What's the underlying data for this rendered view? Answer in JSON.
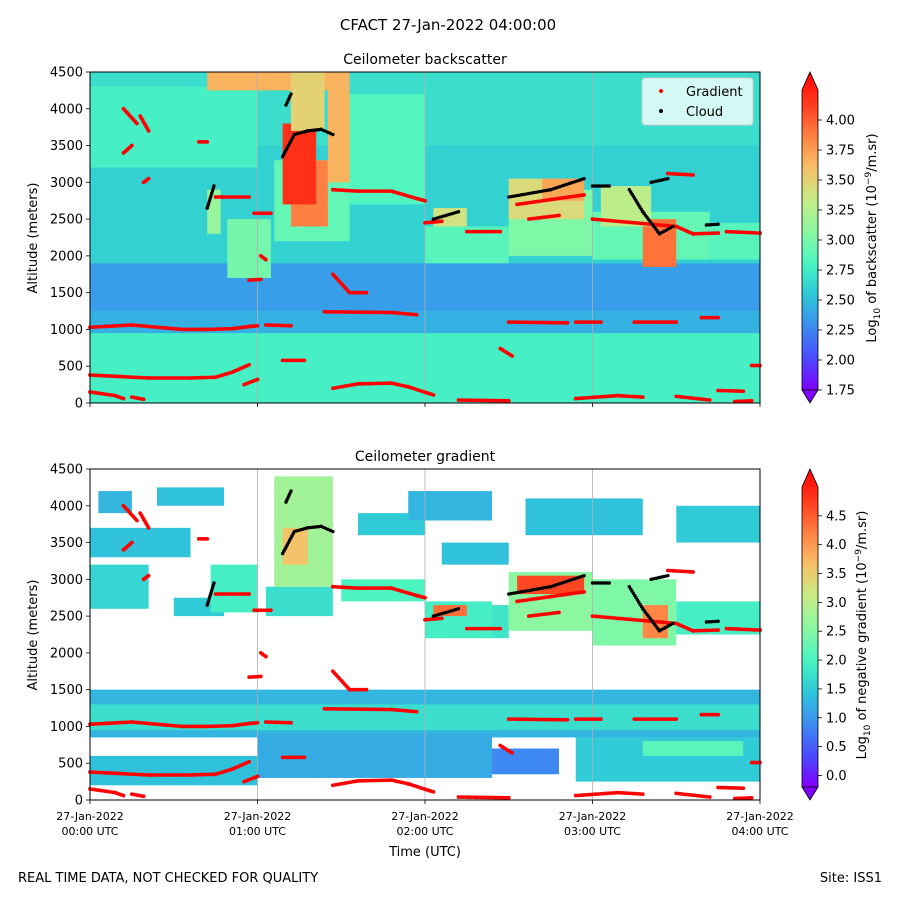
{
  "figure": {
    "suptitle": "CFACT 27-Jan-2022 04:00:00",
    "footer_left": "REAL TIME DATA, NOT CHECKED FOR QUALITY",
    "footer_right": "Site: ISS1"
  },
  "colors": {
    "gradient_marker": "#ff0000",
    "cloud_marker": "#000000",
    "rainbow": [
      "#8000ff",
      "#4a4bfb",
      "#3c8df0",
      "#2ec8d8",
      "#4af5c1",
      "#8bf7a1",
      "#c7eb86",
      "#f7c067",
      "#ff8040",
      "#ff3b1e",
      "#ff0000"
    ]
  },
  "chart_data": [
    {
      "type": "heatmap",
      "title": "Ceilometer backscatter",
      "ylabel": "Altitude (meters)",
      "xlabel": "",
      "ylim": [
        0,
        4500
      ],
      "xlim_hours": [
        0,
        4
      ],
      "yticks": [
        "0",
        "500",
        "1000",
        "1500",
        "2000",
        "2500",
        "3000",
        "3500",
        "4000",
        "4500"
      ],
      "xtick_labels": [],
      "colorbar": {
        "label_main": "Log",
        "label_sub": "10",
        "label_rest": " of backscatter (10",
        "label_exp": "−9",
        "label_end": "/m.sr)",
        "range": [
          1.75,
          4.25
        ],
        "ticks": [
          "1.75",
          "2.00",
          "2.25",
          "2.50",
          "2.75",
          "3.00",
          "3.25",
          "3.50",
          "3.75",
          "4.00"
        ]
      },
      "legend": {
        "position": "top-right",
        "entries": [
          "Gradient",
          "Cloud"
        ]
      },
      "fields": [
        {
          "t0": 0.0,
          "t1": 4.0,
          "a0": 0,
          "a1": 4500,
          "v": 2.55
        },
        {
          "t0": 0.0,
          "t1": 4.0,
          "a0": 0,
          "a1": 950,
          "v": 2.72
        },
        {
          "t0": 0.0,
          "t1": 4.0,
          "a0": 950,
          "a1": 1250,
          "v": 2.4
        },
        {
          "t0": 0.0,
          "t1": 4.0,
          "a0": 1250,
          "a1": 1900,
          "v": 2.32
        },
        {
          "t0": 0.0,
          "t1": 4.0,
          "a0": 1900,
          "a1": 2300,
          "v": 2.55
        },
        {
          "t0": 0.0,
          "t1": 4.0,
          "a0": 3500,
          "a1": 4500,
          "v": 2.62
        },
        {
          "t0": 0.0,
          "t1": 1.0,
          "a0": 3200,
          "a1": 4300,
          "v": 2.72
        },
        {
          "t0": 0.7,
          "t1": 1.5,
          "a0": 4250,
          "a1": 4500,
          "v": 3.55
        },
        {
          "t0": 1.5,
          "t1": 2.0,
          "a0": 2700,
          "a1": 4200,
          "v": 2.78
        },
        {
          "t0": 0.82,
          "t1": 1.08,
          "a0": 1700,
          "a1": 2500,
          "v": 2.92
        },
        {
          "t0": 0.7,
          "t1": 0.78,
          "a0": 2300,
          "a1": 2900,
          "v": 3.05
        },
        {
          "t0": 1.1,
          "t1": 1.55,
          "a0": 2200,
          "a1": 3300,
          "v": 2.85
        },
        {
          "t0": 2.0,
          "t1": 2.5,
          "a0": 1900,
          "a1": 2400,
          "v": 2.8
        },
        {
          "t0": 2.5,
          "t1": 3.0,
          "a0": 2000,
          "a1": 2900,
          "v": 2.95
        },
        {
          "t0": 3.0,
          "t1": 3.7,
          "a0": 1950,
          "a1": 2600,
          "v": 2.85
        },
        {
          "t0": 3.7,
          "t1": 4.0,
          "a0": 1950,
          "a1": 2450,
          "v": 2.8
        },
        {
          "t0": 2.05,
          "t1": 2.25,
          "a0": 2400,
          "a1": 2650,
          "v": 3.3
        },
        {
          "t0": 2.5,
          "t1": 2.95,
          "a0": 2500,
          "a1": 3050,
          "v": 3.35
        },
        {
          "t0": 2.7,
          "t1": 2.95,
          "a0": 2750,
          "a1": 3050,
          "v": 3.6
        },
        {
          "t0": 3.3,
          "t1": 3.5,
          "a0": 1850,
          "a1": 2500,
          "v": 3.8
        },
        {
          "t0": 3.05,
          "t1": 3.35,
          "a0": 2400,
          "a1": 2950,
          "v": 3.2
        },
        {
          "t0": 1.2,
          "t1": 1.42,
          "a0": 2400,
          "a1": 3300,
          "v": 3.75
        },
        {
          "t0": 1.15,
          "t1": 1.35,
          "a0": 2700,
          "a1": 3800,
          "v": 4.05
        },
        {
          "t0": 1.2,
          "t1": 1.4,
          "a0": 3700,
          "a1": 4500,
          "v": 3.4
        },
        {
          "t0": 1.42,
          "t1": 1.55,
          "a0": 3000,
          "a1": 4500,
          "v": 3.55
        }
      ],
      "gradient_tracks": [
        {
          "t": [
            0.0,
            0.25,
            0.45,
            0.55,
            0.7,
            0.85,
            0.95,
            1.0
          ],
          "alt": [
            1030,
            1060,
            1020,
            1000,
            1000,
            1010,
            1040,
            1050
          ]
        },
        {
          "t": [
            1.05,
            1.2
          ],
          "alt": [
            1060,
            1050
          ]
        },
        {
          "t": [
            1.4,
            1.8,
            1.95
          ],
          "alt": [
            1240,
            1230,
            1200
          ]
        },
        {
          "t": [
            2.5,
            2.85
          ],
          "alt": [
            1100,
            1090
          ]
        },
        {
          "t": [
            2.9,
            3.05
          ],
          "alt": [
            1100,
            1100
          ]
        },
        {
          "t": [
            3.25,
            3.5
          ],
          "alt": [
            1100,
            1100
          ]
        },
        {
          "t": [
            3.65,
            3.75
          ],
          "alt": [
            1160,
            1160
          ]
        },
        {
          "t": [
            0.0,
            0.35,
            0.6,
            0.75,
            0.85,
            0.95
          ],
          "alt": [
            380,
            340,
            340,
            350,
            420,
            520
          ]
        },
        {
          "t": [
            0.0,
            0.15,
            0.2
          ],
          "alt": [
            150,
            100,
            60
          ]
        },
        {
          "t": [
            0.25,
            0.32
          ],
          "alt": [
            80,
            50
          ]
        },
        {
          "t": [
            0.92,
            1.0
          ],
          "alt": [
            250,
            320
          ]
        },
        {
          "t": [
            1.15,
            1.28
          ],
          "alt": [
            580,
            580
          ]
        },
        {
          "t": [
            1.45,
            1.6,
            1.8,
            1.9,
            2.05
          ],
          "alt": [
            200,
            260,
            270,
            220,
            110
          ]
        },
        {
          "t": [
            2.2,
            2.5
          ],
          "alt": [
            40,
            30
          ]
        },
        {
          "t": [
            2.9,
            3.15,
            3.3
          ],
          "alt": [
            60,
            100,
            80
          ]
        },
        {
          "t": [
            3.5,
            3.7
          ],
          "alt": [
            90,
            40
          ]
        },
        {
          "t": [
            3.75,
            3.9
          ],
          "alt": [
            170,
            160
          ]
        },
        {
          "t": [
            3.85,
            3.95
          ],
          "alt": [
            20,
            30
          ]
        },
        {
          "t": [
            3.95,
            4.0
          ],
          "alt": [
            510,
            510
          ]
        },
        {
          "t": [
            2.45,
            2.52
          ],
          "alt": [
            740,
            640
          ]
        },
        {
          "t": [
            0.95,
            1.02
          ],
          "alt": [
            1670,
            1680
          ]
        },
        {
          "t": [
            1.02,
            1.05
          ],
          "alt": [
            2000,
            1950
          ]
        },
        {
          "t": [
            0.75,
            0.95
          ],
          "alt": [
            2800,
            2800
          ]
        },
        {
          "t": [
            0.98,
            1.08
          ],
          "alt": [
            2580,
            2580
          ]
        },
        {
          "t": [
            0.2,
            0.28
          ],
          "alt": [
            4000,
            3800
          ]
        },
        {
          "t": [
            0.3,
            0.35
          ],
          "alt": [
            3900,
            3700
          ]
        },
        {
          "t": [
            0.2,
            0.25
          ],
          "alt": [
            3400,
            3500
          ]
        },
        {
          "t": [
            0.32,
            0.35
          ],
          "alt": [
            3000,
            3050
          ]
        },
        {
          "t": [
            0.65,
            0.7
          ],
          "alt": [
            3550,
            3550
          ]
        },
        {
          "t": [
            1.45,
            1.55,
            1.65
          ],
          "alt": [
            1750,
            1500,
            1500
          ]
        },
        {
          "t": [
            1.45,
            1.6,
            1.8,
            1.95,
            2.0
          ],
          "alt": [
            2900,
            2880,
            2880,
            2780,
            2750
          ]
        },
        {
          "t": [
            2.25,
            2.45
          ],
          "alt": [
            2330,
            2330
          ]
        },
        {
          "t": [
            2.55,
            2.95
          ],
          "alt": [
            2700,
            2830
          ]
        },
        {
          "t": [
            3.0,
            3.5
          ],
          "alt": [
            2500,
            2400
          ]
        },
        {
          "t": [
            3.45,
            3.6
          ],
          "alt": [
            3120,
            3100
          ]
        },
        {
          "t": [
            3.5,
            3.6
          ],
          "alt": [
            2400,
            2300
          ]
        },
        {
          "t": [
            3.6,
            3.75
          ],
          "alt": [
            2300,
            2310
          ]
        },
        {
          "t": [
            3.8,
            4.0
          ],
          "alt": [
            2330,
            2310
          ]
        },
        {
          "t": [
            2.62,
            2.8
          ],
          "alt": [
            2500,
            2550
          ]
        },
        {
          "t": [
            2.0,
            2.1
          ],
          "alt": [
            2450,
            2470
          ]
        }
      ],
      "cloud_tracks": [
        {
          "t": [
            1.15,
            1.22,
            1.3,
            1.38,
            1.45
          ],
          "alt": [
            3350,
            3650,
            3700,
            3720,
            3650
          ]
        },
        {
          "t": [
            1.17,
            1.2
          ],
          "alt": [
            4050,
            4200
          ]
        },
        {
          "t": [
            0.7,
            0.74
          ],
          "alt": [
            2650,
            2950
          ]
        },
        {
          "t": [
            2.05,
            2.2
          ],
          "alt": [
            2500,
            2600
          ]
        },
        {
          "t": [
            2.5,
            2.75,
            2.95
          ],
          "alt": [
            2800,
            2900,
            3050
          ]
        },
        {
          "t": [
            3.0,
            3.1
          ],
          "alt": [
            2950,
            2950
          ]
        },
        {
          "t": [
            3.22,
            3.3,
            3.4,
            3.48
          ],
          "alt": [
            2900,
            2600,
            2300,
            2400
          ]
        },
        {
          "t": [
            3.35,
            3.45
          ],
          "alt": [
            3000,
            3050
          ]
        },
        {
          "t": [
            3.68,
            3.75
          ],
          "alt": [
            2420,
            2430
          ]
        }
      ]
    },
    {
      "type": "heatmap",
      "title": "Ceilometer gradient",
      "ylabel": "Altitude (meters)",
      "xlabel": "Time (UTC)",
      "ylim": [
        0,
        4500
      ],
      "xlim_hours": [
        0,
        4
      ],
      "yticks": [
        "0",
        "500",
        "1000",
        "1500",
        "2000",
        "2500",
        "3000",
        "3500",
        "4000",
        "4500"
      ],
      "xtick_labels": [
        [
          "27-Jan-2022",
          "00:00 UTC"
        ],
        [
          "27-Jan-2022",
          "01:00 UTC"
        ],
        [
          "27-Jan-2022",
          "02:00 UTC"
        ],
        [
          "27-Jan-2022",
          "03:00 UTC"
        ],
        [
          "27-Jan-2022",
          "04:00 UTC"
        ]
      ],
      "colorbar": {
        "label_main": "Log",
        "label_sub": "10",
        "label_rest": " of negative gradient (10",
        "label_exp": "−9",
        "label_end": "/m.sr)",
        "range": [
          -0.2,
          5.0
        ],
        "ticks": [
          "0.0",
          "0.5",
          "1.0",
          "1.5",
          "2.0",
          "2.5",
          "3.0",
          "3.5",
          "4.0",
          "4.5"
        ]
      },
      "legend": null,
      "fields": [
        {
          "t0": 0.0,
          "t1": 4.0,
          "a0": 850,
          "a1": 1500,
          "v": 1.2
        },
        {
          "t0": 0.0,
          "t1": 4.0,
          "a0": 950,
          "a1": 1300,
          "v": 1.6
        },
        {
          "t0": 0.0,
          "t1": 1.0,
          "a0": 200,
          "a1": 600,
          "v": 1.3
        },
        {
          "t0": 1.0,
          "t1": 2.4,
          "a0": 300,
          "a1": 900,
          "v": 1.1
        },
        {
          "t0": 2.4,
          "t1": 2.8,
          "a0": 350,
          "a1": 700,
          "v": 0.8
        },
        {
          "t0": 2.9,
          "t1": 4.0,
          "a0": 250,
          "a1": 850,
          "v": 1.4
        },
        {
          "t0": 3.3,
          "t1": 3.9,
          "a0": 600,
          "a1": 800,
          "v": 2.0
        },
        {
          "t0": 0.0,
          "t1": 0.35,
          "a0": 2600,
          "a1": 3200,
          "v": 1.5
        },
        {
          "t0": 0.0,
          "t1": 0.6,
          "a0": 3300,
          "a1": 3700,
          "v": 1.3
        },
        {
          "t0": 0.05,
          "t1": 0.25,
          "a0": 3900,
          "a1": 4200,
          "v": 1.2
        },
        {
          "t0": 0.4,
          "t1": 0.8,
          "a0": 4000,
          "a1": 4250,
          "v": 1.3
        },
        {
          "t0": 0.5,
          "t1": 0.8,
          "a0": 2500,
          "a1": 2750,
          "v": 1.4
        },
        {
          "t0": 0.72,
          "t1": 1.0,
          "a0": 2550,
          "a1": 3200,
          "v": 1.8
        },
        {
          "t0": 1.05,
          "t1": 1.45,
          "a0": 2500,
          "a1": 2900,
          "v": 1.6
        },
        {
          "t0": 1.1,
          "t1": 1.45,
          "a0": 2900,
          "a1": 4400,
          "v": 2.6
        },
        {
          "t0": 1.15,
          "t1": 1.3,
          "a0": 3200,
          "a1": 3700,
          "v": 3.4
        },
        {
          "t0": 1.5,
          "t1": 2.0,
          "a0": 2700,
          "a1": 3000,
          "v": 1.9
        },
        {
          "t0": 1.6,
          "t1": 2.0,
          "a0": 3600,
          "a1": 3900,
          "v": 1.4
        },
        {
          "t0": 1.9,
          "t1": 2.4,
          "a0": 3800,
          "a1": 4200,
          "v": 1.2
        },
        {
          "t0": 2.6,
          "t1": 3.3,
          "a0": 3600,
          "a1": 4100,
          "v": 1.3
        },
        {
          "t0": 3.5,
          "t1": 4.0,
          "a0": 3500,
          "a1": 4000,
          "v": 1.4
        },
        {
          "t0": 2.0,
          "t1": 2.4,
          "a0": 2200,
          "a1": 2700,
          "v": 1.8
        },
        {
          "t0": 2.4,
          "t1": 2.5,
          "a0": 2200,
          "a1": 2650,
          "v": 1.7
        },
        {
          "t0": 2.5,
          "t1": 3.0,
          "a0": 2300,
          "a1": 3100,
          "v": 2.4
        },
        {
          "t0": 3.0,
          "t1": 3.5,
          "a0": 2100,
          "a1": 3000,
          "v": 2.3
        },
        {
          "t0": 3.5,
          "t1": 4.0,
          "a0": 2250,
          "a1": 2700,
          "v": 1.8
        },
        {
          "t0": 2.1,
          "t1": 2.5,
          "a0": 3200,
          "a1": 3500,
          "v": 1.3
        },
        {
          "t0": 3.3,
          "t1": 3.45,
          "a0": 2200,
          "a1": 2650,
          "v": 3.9
        },
        {
          "t0": 2.55,
          "t1": 2.95,
          "a0": 2800,
          "a1": 3050,
          "v": 4.4
        },
        {
          "t0": 2.05,
          "t1": 2.25,
          "a0": 2500,
          "a1": 2650,
          "v": 4.1
        }
      ],
      "gradient_tracks": "same_as_first",
      "cloud_tracks": "same_as_first"
    }
  ]
}
